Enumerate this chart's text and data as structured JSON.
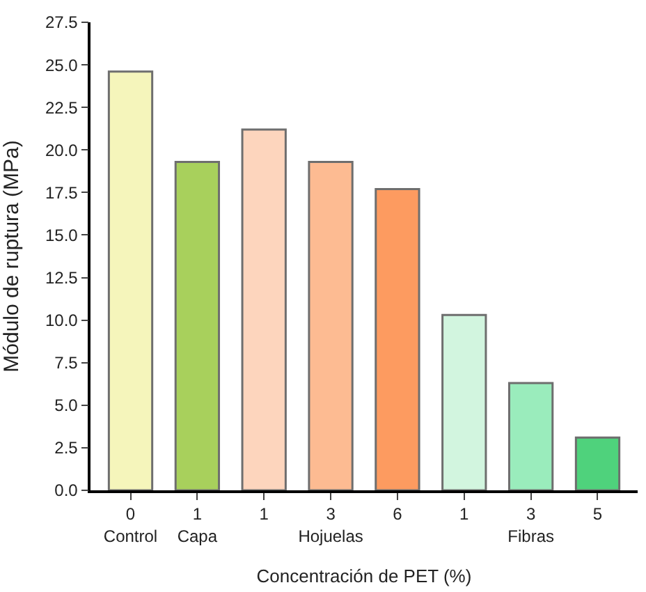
{
  "chart_data": {
    "type": "bar",
    "xlabel": "Concentración de PET (%)",
    "ylabel": "Módulo de ruptura (MPa)",
    "categories": [
      "0\nControl",
      "1\nCapa",
      "1",
      "3\nHojuelas",
      "6",
      "1",
      "3\nFibras",
      "5"
    ],
    "values": [
      24.6,
      19.3,
      21.2,
      19.3,
      17.7,
      10.3,
      6.3,
      3.1
    ],
    "colors": [
      "#f5f5bb",
      "#a8d05c",
      "#fdd5bd",
      "#fdbb92",
      "#fd9b60",
      "#d2f5df",
      "#9aecbc",
      "#4fd27c"
    ],
    "ylim": [
      0,
      27.5
    ],
    "yticks": [
      {
        "value": 0,
        "label": "0.0"
      },
      2.5,
      {
        "value": 5,
        "label": "5.0"
      },
      7.5,
      {
        "value": 10,
        "label": "10.0"
      },
      12.5,
      {
        "value": 15,
        "label": "15.0"
      },
      17.5,
      {
        "value": 20,
        "label": "20.0"
      },
      22.5,
      {
        "value": 25,
        "label": "25.0"
      },
      27.5
    ]
  }
}
